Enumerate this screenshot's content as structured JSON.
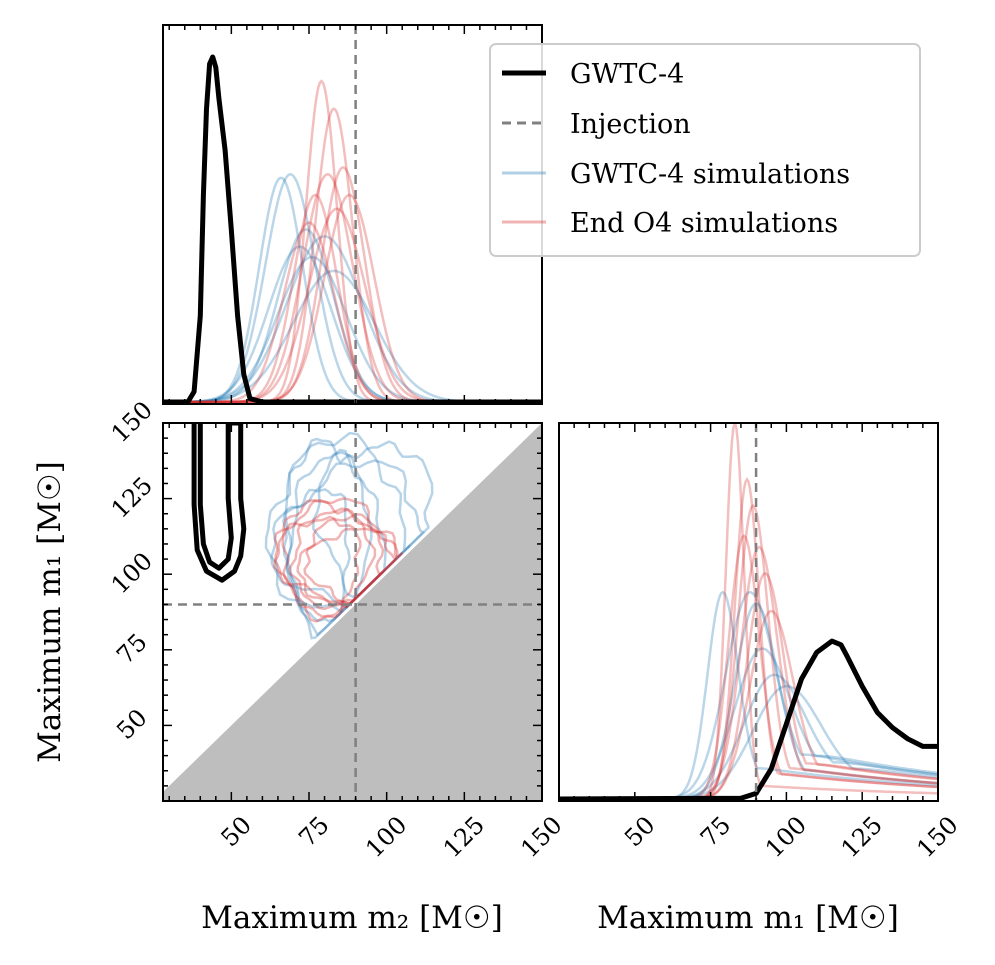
{
  "chart_data": {
    "type": "corner",
    "legend": {
      "placement": "top-right",
      "entries": [
        {
          "label": "GWTC-4",
          "color": "#000000",
          "style": "solid-thick"
        },
        {
          "label": "Injection",
          "color": "#808080",
          "style": "dashed"
        },
        {
          "label": "GWTC-4 simulations",
          "color": "#1f77b4",
          "style": "solid-faint"
        },
        {
          "label": "End O4 simulations",
          "color": "#d62728",
          "style": "solid-faint"
        }
      ]
    },
    "axes": {
      "m2": {
        "label": "Maximum m₂ [M☉]",
        "lim": [
          28,
          150
        ],
        "ticks": [
          50,
          75,
          100,
          125,
          150
        ]
      },
      "m1": {
        "label": "Maximum m₁ [M☉]",
        "lim": [
          25,
          150
        ],
        "ticks": [
          50,
          75,
          100,
          125,
          150
        ]
      },
      "m1_side": {
        "label": "Maximum m₁ [M☉]",
        "lim": [
          25,
          150
        ],
        "ticks": [
          50,
          75,
          100,
          125,
          150
        ]
      }
    },
    "injection": {
      "m1": 90,
      "m2": 90
    },
    "m2_marginal": {
      "gwtc4": {
        "x": [
          28,
          36,
          38,
          40,
          41,
          42,
          43,
          44,
          45,
          46,
          48,
          50,
          52,
          54,
          56,
          60,
          70,
          150
        ],
        "y": [
          0,
          0,
          0.03,
          0.25,
          0.6,
          0.85,
          0.98,
          1.0,
          0.97,
          0.88,
          0.73,
          0.5,
          0.25,
          0.08,
          0.01,
          0,
          0,
          0
        ]
      },
      "gwtc4_sims": [
        {
          "mu": 66,
          "s": 7,
          "a": 0.65
        },
        {
          "mu": 69,
          "s": 8,
          "a": 0.66
        },
        {
          "mu": 72,
          "s": 10,
          "a": 0.45
        },
        {
          "mu": 76,
          "s": 11,
          "a": 0.42
        },
        {
          "mu": 80,
          "s": 12,
          "a": 0.48
        },
        {
          "mu": 74,
          "s": 9,
          "a": 0.5
        },
        {
          "mu": 83,
          "s": 13,
          "a": 0.38
        }
      ],
      "end_o4_sims": [
        {
          "mu": 79,
          "s": 5,
          "a": 0.93
        },
        {
          "mu": 83,
          "s": 6,
          "a": 0.85
        },
        {
          "mu": 86,
          "s": 7,
          "a": 0.68
        },
        {
          "mu": 77,
          "s": 7,
          "a": 0.6
        },
        {
          "mu": 81,
          "s": 8,
          "a": 0.66
        },
        {
          "mu": 84,
          "s": 9,
          "a": 0.56
        },
        {
          "mu": 75,
          "s": 8,
          "a": 0.52
        },
        {
          "mu": 88,
          "s": 8,
          "a": 0.6
        }
      ]
    },
    "m1_marginal": {
      "gwtc4": {
        "x": [
          25,
          85,
          90,
          95,
          100,
          105,
          110,
          115,
          118,
          120,
          125,
          130,
          135,
          140,
          145,
          150
        ],
        "y": [
          0,
          0.002,
          0.015,
          0.08,
          0.2,
          0.32,
          0.39,
          0.42,
          0.41,
          0.38,
          0.3,
          0.23,
          0.19,
          0.16,
          0.14,
          0.14
        ]
      },
      "gwtc4_sims": [
        {
          "mu": 79,
          "s": 5,
          "a": 0.55,
          "tail": 0.05
        },
        {
          "mu": 88,
          "s": 8,
          "a": 0.55,
          "tail": 0.08
        },
        {
          "mu": 92,
          "s": 9,
          "a": 0.4,
          "tail": 0.08
        },
        {
          "mu": 96,
          "s": 10,
          "a": 0.33,
          "tail": 0.07
        },
        {
          "mu": 100,
          "s": 11,
          "a": 0.3,
          "tail": 0.06
        },
        {
          "mu": 90,
          "s": 7,
          "a": 0.52,
          "tail": 0.05
        }
      ],
      "end_o4_sims": [
        {
          "mu": 83,
          "s": 3,
          "a": 1.0,
          "tail": 0.02
        },
        {
          "mu": 87,
          "s": 4,
          "a": 0.85,
          "tail": 0.04
        },
        {
          "mu": 89,
          "s": 5,
          "a": 0.78,
          "tail": 0.05
        },
        {
          "mu": 91,
          "s": 6,
          "a": 0.67,
          "tail": 0.05
        },
        {
          "mu": 93,
          "s": 6,
          "a": 0.6,
          "tail": 0.06
        },
        {
          "mu": 86,
          "s": 5,
          "a": 0.7,
          "tail": 0.04
        },
        {
          "mu": 95,
          "s": 7,
          "a": 0.5,
          "tail": 0.06
        }
      ]
    },
    "joint": {
      "gwtc4_contour": [
        [
          38,
          150
        ],
        [
          38,
          123
        ],
        [
          39,
          108
        ],
        [
          42,
          101
        ],
        [
          47,
          98
        ],
        [
          51,
          101
        ],
        [
          53,
          106
        ],
        [
          54,
          115
        ],
        [
          53,
          125
        ],
        [
          53,
          150
        ],
        [
          49,
          150
        ],
        [
          49,
          125
        ],
        [
          50,
          112
        ],
        [
          49,
          105
        ],
        [
          46,
          102
        ],
        [
          43,
          104
        ],
        [
          41,
          110
        ],
        [
          40,
          123
        ],
        [
          40,
          150
        ]
      ],
      "gwtc4_sims": [
        {
          "cx": 80,
          "cy": 112,
          "rx": 13,
          "ry": 32,
          "a": 1,
          "b": 0.58,
          "r": 40
        },
        {
          "cx": 83,
          "cy": 110,
          "rx": 15,
          "ry": 28,
          "a": 2,
          "b": 0.55,
          "r": 40
        },
        {
          "cx": 84,
          "cy": 115,
          "rx": 22,
          "ry": 28,
          "a": 3,
          "b": 0.44,
          "r": 30
        },
        {
          "cx": 90,
          "cy": 112,
          "rx": 22,
          "ry": 24,
          "a": 4,
          "b": 0.42,
          "r": 25
        },
        {
          "cx": 76,
          "cy": 108,
          "rx": 12,
          "ry": 20,
          "a": 5,
          "b": 0.5,
          "r": 35
        },
        {
          "cx": 96,
          "cy": 118,
          "rx": 18,
          "ry": 26,
          "a": 6,
          "b": 0.4,
          "r": 20
        }
      ],
      "end_o4_sims": [
        {
          "cx": 80,
          "cy": 106,
          "rx": 14,
          "ry": 18,
          "a": 1,
          "b": 0.3,
          "r": 15
        },
        {
          "cx": 85,
          "cy": 105,
          "rx": 16,
          "ry": 15,
          "a": 2,
          "b": 0.28,
          "r": 10
        },
        {
          "cx": 88,
          "cy": 104,
          "rx": 16,
          "ry": 14,
          "a": 3,
          "b": 0.3,
          "r": 5
        },
        {
          "cx": 82,
          "cy": 108,
          "rx": 17,
          "ry": 16,
          "a": 4,
          "b": 0.32,
          "r": 10
        },
        {
          "cx": 90,
          "cy": 103,
          "rx": 15,
          "ry": 12,
          "a": 5,
          "b": 0.26,
          "r": 0
        },
        {
          "cx": 78,
          "cy": 104,
          "rx": 13,
          "ry": 15,
          "a": 6,
          "b": 0.3,
          "r": 20
        }
      ]
    }
  }
}
